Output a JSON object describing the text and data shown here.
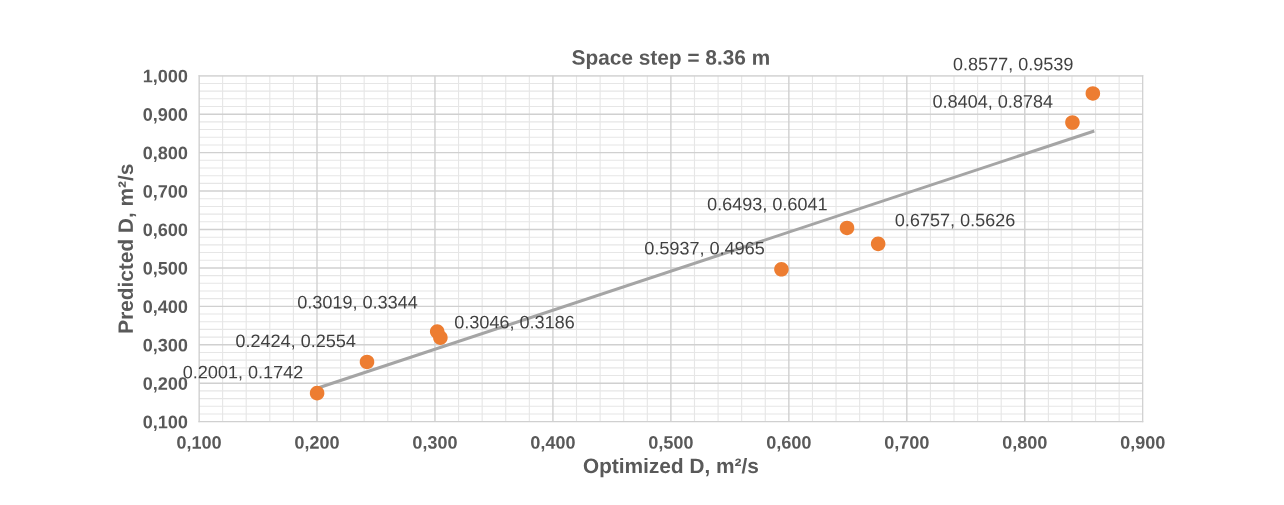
{
  "chart_data": {
    "type": "scatter",
    "title": "Space step = 8.36 m",
    "xlabel": "Optimized D, m²/s",
    "ylabel": "Predicted D, m²/s",
    "series": [
      {
        "marker": "circle",
        "color": "#ed7d31",
        "x": [
          0.2001,
          0.2424,
          0.3019,
          0.3046,
          0.5937,
          0.6493,
          0.6757,
          0.8404,
          0.8577
        ],
        "values": [
          0.1742,
          0.2554,
          0.3344,
          0.3186,
          0.4965,
          0.6041,
          0.5626,
          0.8784,
          0.9539
        ],
        "value_labels": [
          "0.2001, 0.1742",
          "0.2424, 0.2554",
          "0.3019, 0.3344",
          "0.3046, 0.3186",
          "0.5937, 0.4965",
          "0.6493, 0.6041",
          "0.6757, 0.5626",
          "0.8404, 0.8784",
          "0.8577, 0.9539"
        ]
      },
      {
        "type": "line",
        "color": "#a5a5a5",
        "x": [
          0.2001,
          0.8577
        ],
        "values": [
          0.187,
          0.855
        ]
      }
    ],
    "xlim": [
      0.1,
      0.9
    ],
    "ylim": [
      0.1,
      1.0
    ],
    "xticks": [
      {
        "value": 0.1,
        "label": "0,100"
      },
      {
        "value": 0.2,
        "label": "0,200"
      },
      {
        "value": 0.3,
        "label": "0,300"
      },
      {
        "value": 0.4,
        "label": "0,400"
      },
      {
        "value": 0.5,
        "label": "0,500"
      },
      {
        "value": 0.6,
        "label": "0,600"
      },
      {
        "value": 0.7,
        "label": "0,700"
      },
      {
        "value": 0.8,
        "label": "0,800"
      },
      {
        "value": 0.9,
        "label": "0,900"
      }
    ],
    "yticks": [
      {
        "value": 0.1,
        "label": "0,100"
      },
      {
        "value": 0.2,
        "label": "0,200"
      },
      {
        "value": 0.3,
        "label": "0,300"
      },
      {
        "value": 0.4,
        "label": "0,400"
      },
      {
        "value": 0.5,
        "label": "0,500"
      },
      {
        "value": 0.6,
        "label": "0,600"
      },
      {
        "value": 0.7,
        "label": "0,700"
      },
      {
        "value": 0.8,
        "label": "0,800"
      },
      {
        "value": 0.9,
        "label": "0,900"
      },
      {
        "value": 1.0,
        "label": "1,000"
      }
    ],
    "grid": true
  }
}
